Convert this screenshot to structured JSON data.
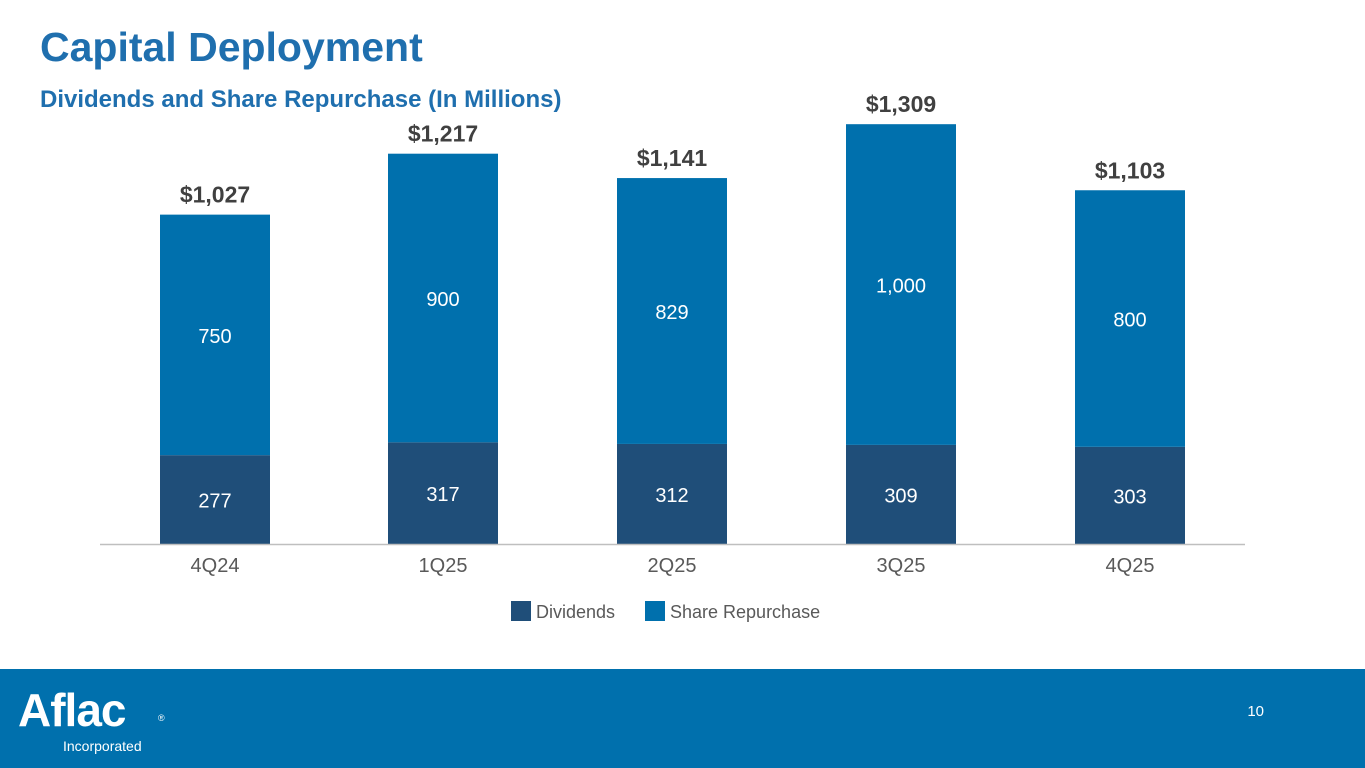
{
  "header": {
    "title": "Capital Deployment",
    "subtitle": "Dividends and Share Repurchase (In Millions)"
  },
  "chart_data": {
    "type": "bar",
    "stacked": true,
    "categories": [
      "4Q24",
      "1Q25",
      "2Q25",
      "3Q25",
      "4Q25"
    ],
    "series": [
      {
        "name": "Dividends",
        "color": "#1f4e79",
        "values": [
          277,
          317,
          312,
          309,
          303
        ]
      },
      {
        "name": "Share Repurchase",
        "color": "#0070ad",
        "values": [
          750,
          900,
          829,
          1000,
          800
        ]
      }
    ],
    "value_labels": [
      "277",
      "317",
      "312",
      "309",
      "303"
    ],
    "repurchase_labels": [
      "750",
      "900",
      "829",
      "1,000",
      "800"
    ],
    "totals": [
      "$1,027",
      "$1,217",
      "$1,141",
      "$1,309",
      "$1,103"
    ],
    "ylim": [
      0,
      1400
    ],
    "legend": {
      "position": "bottom",
      "items": [
        "Dividends",
        "Share Repurchase"
      ]
    },
    "title": "",
    "xlabel": "",
    "ylabel": ""
  },
  "footer": {
    "logo_text": "Aflac",
    "logo_subtext": "Incorporated",
    "logo_reg": "®",
    "page_number": "10"
  }
}
